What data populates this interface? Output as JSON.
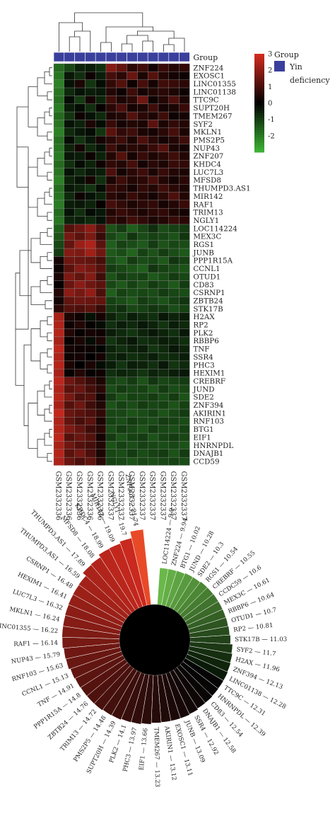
{
  "chart_data": [
    {
      "type": "heatmap",
      "title": "",
      "group_label": "Group",
      "legend_group_title": "Group",
      "legend_group_entry": "Yin deficiency",
      "legend_group_entry_lines": [
        "Yin",
        "deficiency"
      ],
      "group_color": "#3a3f9c",
      "colorscale": {
        "min": -3,
        "max": 3,
        "low": "#3cb034",
        "mid": "#000000",
        "high": "#d12a1f"
      },
      "colorbar_ticks": [
        3,
        2,
        1,
        0,
        -1,
        -2
      ],
      "columns": [
        "GSM2332336",
        "GSM2332336",
        "GSM2332336",
        "GSM2332336",
        "GSM2332336",
        "GSM2332337",
        "GSM2332337",
        "GSM2332337",
        "GSM2332337",
        "GSM2332337",
        "GSM2332337",
        "GSM2332337",
        "GSM2332337"
      ],
      "rows": [
        "ZNF224",
        "EXOSC1",
        "LINC01355",
        "LINC01138",
        "TTC9C",
        "SUPT20H",
        "TMEM267",
        "SYF2",
        "MKLN1",
        "PMS2P5",
        "NUP43",
        "ZNF207",
        "KHDC4",
        "LUC7L3",
        "MFSD8",
        "THUMPD3.AS1",
        "MIR142",
        "RAF1",
        "TRIM13",
        "NGLY1",
        "LOC114224",
        "MEX3C",
        "RGS1",
        "JUNB",
        "PPP1R15A",
        "CCNL1",
        "OTUD1",
        "CD83",
        "CSRNP1",
        "ZBTB24",
        "STK17B",
        "H2AX",
        "RP2",
        "PLK2",
        "RBBP6",
        "TNF",
        "SSR4",
        "PHC3",
        "HEXIM1",
        "CREBRF",
        "JUND",
        "SDE2",
        "ZNF394",
        "AKIRIN1",
        "RNF103",
        "BTG1",
        "EIF1",
        "HNRNPDL",
        "DNAJB1",
        "CCD59"
      ],
      "values": [
        [
          -1.8,
          -1.2,
          -0.6,
          -0.5,
          -0.8,
          1.9,
          1.4,
          0.6,
          0.9,
          0.3,
          0.8,
          0.5,
          0.7
        ],
        [
          -2.0,
          -0.4,
          -0.8,
          0.2,
          -0.5,
          1.0,
          0.6,
          1.5,
          0.4,
          1.2,
          0.5,
          0.3,
          0.2
        ],
        [
          -2.2,
          -0.3,
          0.4,
          -0.9,
          -0.2,
          0.7,
          1.2,
          0.2,
          1.0,
          0.3,
          0.9,
          0.8,
          0.6
        ],
        [
          -2.0,
          -0.7,
          -0.3,
          -0.5,
          -0.4,
          0.5,
          0.2,
          0.9,
          0.3,
          0.5,
          0.6,
          0.4,
          0.2
        ],
        [
          -1.9,
          -0.2,
          -1.0,
          0.3,
          -0.6,
          0.9,
          0.4,
          0.6,
          1.6,
          0.2,
          0.5,
          1.1,
          0.4
        ],
        [
          -2.1,
          -0.5,
          -0.2,
          -0.8,
          0.1,
          0.6,
          1.1,
          0.3,
          0.4,
          0.9,
          0.3,
          0.4,
          0.8
        ],
        [
          -1.8,
          -0.9,
          0.2,
          -0.3,
          -0.7,
          0.4,
          0.5,
          1.2,
          0.6,
          0.4,
          0.9,
          0.2,
          0.3
        ],
        [
          -2.0,
          -0.3,
          -0.6,
          0.4,
          -0.2,
          0.8,
          0.3,
          0.5,
          0.4,
          1.3,
          0.4,
          0.7,
          0.5
        ],
        [
          -2.2,
          -0.7,
          -0.4,
          -0.2,
          -0.9,
          1.3,
          0.7,
          0.9,
          0.4,
          0.3,
          0.6,
          1.0,
          0.4
        ],
        [
          -1.9,
          -0.2,
          -0.9,
          -0.4,
          0.3,
          0.6,
          0.9,
          0.4,
          1.1,
          0.6,
          0.3,
          0.5,
          0.9
        ],
        [
          -2.0,
          -0.6,
          0.3,
          -0.7,
          -0.3,
          0.9,
          0.4,
          0.6,
          0.5,
          0.8,
          1.2,
          0.4,
          0.3
        ],
        [
          -2.1,
          -0.4,
          -0.5,
          0.2,
          -0.6,
          0.5,
          1.2,
          0.3,
          0.8,
          0.4,
          0.6,
          0.9,
          0.5
        ],
        [
          -1.8,
          -0.8,
          -0.2,
          -0.6,
          0.2,
          0.7,
          0.5,
          1.0,
          0.3,
          0.6,
          0.4,
          0.8,
          0.7
        ],
        [
          -2.0,
          -0.3,
          -0.7,
          -0.4,
          -0.5,
          1.1,
          0.3,
          0.6,
          0.9,
          0.4,
          0.8,
          0.5,
          0.4
        ],
        [
          -2.2,
          -0.6,
          -0.3,
          0.3,
          -0.8,
          0.4,
          0.9,
          0.5,
          0.6,
          1.0,
          0.5,
          0.3,
          0.6
        ],
        [
          -1.9,
          -0.4,
          -0.6,
          -0.9,
          -0.2,
          0.8,
          0.6,
          0.3,
          0.7,
          0.5,
          0.9,
          0.6,
          0.4
        ],
        [
          -2.0,
          -0.7,
          0.2,
          -0.3,
          -0.6,
          0.6,
          0.4,
          0.8,
          0.5,
          0.3,
          0.6,
          1.1,
          0.5
        ],
        [
          -2.1,
          -0.5,
          -0.4,
          -0.6,
          0.1,
          1.0,
          0.7,
          0.4,
          0.6,
          0.7,
          0.3,
          0.5,
          0.8
        ],
        [
          -1.8,
          -0.3,
          -0.8,
          -0.2,
          -0.4,
          0.5,
          0.8,
          0.6,
          0.4,
          0.6,
          0.7,
          0.4,
          0.3
        ],
        [
          -2.0,
          -0.6,
          -0.5,
          -0.7,
          -0.3,
          0.7,
          0.5,
          0.9,
          0.7,
          0.4,
          0.5,
          0.8,
          0.6
        ],
        [
          -1.6,
          1.2,
          1.6,
          2.0,
          1.1,
          -1.4,
          -1.0,
          -1.6,
          -1.2,
          -0.8,
          -1.3,
          -1.1,
          -1.0
        ],
        [
          -1.4,
          1.7,
          1.3,
          1.8,
          0.8,
          -1.2,
          -1.5,
          -0.9,
          -1.3,
          -1.1,
          -1.2,
          -1.4,
          -0.9
        ],
        [
          -1.2,
          1.4,
          2.2,
          2.5,
          1.3,
          -1.6,
          -1.1,
          -1.3,
          -1.5,
          -1.0,
          -1.4,
          -1.2,
          -1.3
        ],
        [
          -1.0,
          1.9,
          1.8,
          2.3,
          1.6,
          -1.5,
          -1.3,
          -1.7,
          -1.1,
          -1.4,
          -1.0,
          -1.3,
          -1.5
        ],
        [
          0.3,
          1.6,
          1.5,
          1.4,
          1.0,
          -1.3,
          -1.6,
          -1.0,
          -1.3,
          -1.2,
          -1.5,
          -0.9,
          -1.1
        ],
        [
          0.2,
          1.3,
          1.9,
          1.7,
          1.2,
          -1.0,
          -1.2,
          -1.4,
          -1.6,
          -0.9,
          -1.1,
          -1.3,
          -1.4
        ],
        [
          0.4,
          1.8,
          1.4,
          1.9,
          0.9,
          -1.4,
          -1.0,
          -1.2,
          -1.1,
          -1.5,
          -1.3,
          -1.0,
          -1.2
        ],
        [
          0.1,
          1.5,
          2.0,
          1.6,
          1.3,
          -1.2,
          -1.5,
          -1.1,
          -1.4,
          -1.0,
          -1.2,
          -1.5,
          -1.0
        ],
        [
          0.5,
          2.0,
          1.7,
          2.1,
          1.1,
          -1.6,
          -1.1,
          -1.3,
          -1.2,
          -1.3,
          -1.0,
          -1.2,
          -1.3
        ],
        [
          0.3,
          1.4,
          1.6,
          1.5,
          1.4,
          -1.1,
          -1.3,
          -1.5,
          -1.0,
          -1.2,
          -1.4,
          -1.1,
          -0.9
        ],
        [
          0.6,
          1.2,
          1.1,
          1.3,
          0.8,
          -1.0,
          -0.8,
          -1.2,
          -1.1,
          -0.9,
          -1.0,
          -1.3,
          -1.1
        ],
        [
          2.4,
          0.4,
          0.2,
          -0.3,
          0.3,
          -0.6,
          -0.9,
          -0.5,
          -0.7,
          -0.8,
          -0.4,
          -0.6,
          -0.5
        ],
        [
          2.5,
          0.2,
          0.5,
          0.1,
          -0.2,
          -0.8,
          -0.5,
          -0.7,
          -0.4,
          -0.6,
          -0.9,
          -0.5,
          -0.7
        ],
        [
          2.6,
          0.5,
          0.1,
          0.3,
          0.2,
          -0.5,
          -0.7,
          -0.9,
          -0.6,
          -0.4,
          -0.6,
          -0.8,
          -0.4
        ],
        [
          2.4,
          0.1,
          0.4,
          -0.2,
          0.4,
          -0.9,
          -0.6,
          -0.4,
          -0.8,
          -0.7,
          -0.5,
          -0.6,
          -0.8
        ],
        [
          2.7,
          0.3,
          0.2,
          0.2,
          -0.1,
          -0.6,
          -0.8,
          -0.6,
          -0.5,
          -0.9,
          -0.7,
          -0.4,
          -0.6
        ],
        [
          2.5,
          0.2,
          0.3,
          0.0,
          0.3,
          -0.7,
          -0.5,
          -0.8,
          -0.7,
          -0.5,
          -0.8,
          -0.7,
          -0.5
        ],
        [
          2.6,
          0.4,
          0.0,
          0.4,
          -0.2,
          -0.5,
          -0.9,
          -0.5,
          -0.6,
          -0.8,
          -0.4,
          -0.9,
          -0.7
        ],
        [
          2.4,
          0.1,
          0.5,
          0.1,
          0.2,
          -0.8,
          -0.6,
          -0.7,
          -0.9,
          -0.6,
          -0.7,
          -0.5,
          -0.4
        ],
        [
          2.7,
          1.6,
          1.2,
          0.8,
          0.4,
          -1.1,
          -1.3,
          -1.0,
          -1.4,
          -0.9,
          -1.2,
          -1.1,
          -1.0
        ],
        [
          2.5,
          1.3,
          1.5,
          1.0,
          0.6,
          -1.3,
          -1.0,
          -1.2,
          -1.1,
          -1.4,
          -1.0,
          -1.3,
          -1.2
        ],
        [
          2.6,
          1.7,
          1.1,
          1.2,
          0.3,
          -1.0,
          -1.4,
          -1.1,
          -1.2,
          -1.0,
          -1.3,
          -1.0,
          -1.4
        ],
        [
          2.4,
          1.2,
          1.6,
          0.9,
          0.5,
          -1.4,
          -1.1,
          -1.3,
          -1.0,
          -1.2,
          -1.1,
          -1.4,
          -1.1
        ],
        [
          2.8,
          1.5,
          1.3,
          1.1,
          0.7,
          -1.2,
          -1.2,
          -1.4,
          -1.3,
          -1.1,
          -1.4,
          -1.2,
          -1.0
        ],
        [
          2.5,
          1.4,
          1.0,
          1.3,
          0.4,
          -1.1,
          -1.3,
          -1.0,
          -1.2,
          -1.3,
          -1.0,
          -1.1,
          -1.3
        ],
        [
          2.6,
          1.8,
          1.4,
          0.9,
          0.6,
          -1.3,
          -1.0,
          -1.2,
          -1.4,
          -1.0,
          -1.2,
          -1.3,
          -1.1
        ],
        [
          2.7,
          1.2,
          1.5,
          1.2,
          0.3,
          -1.0,
          -1.4,
          -1.1,
          -1.0,
          -1.4,
          -1.1,
          -1.0,
          -1.2
        ],
        [
          2.4,
          1.6,
          1.2,
          1.0,
          0.5,
          -1.4,
          -1.1,
          -1.3,
          -1.1,
          -1.2,
          -1.3,
          -1.2,
          -1.4
        ],
        [
          2.6,
          1.3,
          1.7,
          1.1,
          0.4,
          -1.2,
          -1.3,
          -1.0,
          -1.3,
          -1.1,
          -1.0,
          -1.4,
          -1.0
        ],
        [
          2.5,
          1.5,
          1.1,
          1.4,
          0.6,
          -1.1,
          -1.2,
          -1.4,
          -1.2,
          -1.3,
          -1.2,
          -1.1,
          -1.3
        ]
      ]
    },
    {
      "type": "radial_bar",
      "title": "",
      "center_color": "#000000",
      "colorscale": {
        "low": "#000000",
        "high": "#d12a1f"
      },
      "highlight_color": "#e84a28",
      "green_color": "#6ab84a",
      "items": [
        {
          "label": "LOC114224",
          "value": 9.9
        },
        {
          "label": "ZNF224",
          "value": 9.94
        },
        {
          "label": "BTG1",
          "value": 10.02
        },
        {
          "label": "JUND",
          "value": 10.28
        },
        {
          "label": "SDE2",
          "value": 10.3
        },
        {
          "label": "RGS1",
          "value": 10.54
        },
        {
          "label": "CREBRF",
          "value": 10.55
        },
        {
          "label": "CCDC59",
          "value": 10.6
        },
        {
          "label": "MEX3C",
          "value": 10.61
        },
        {
          "label": "RBBP6",
          "value": 10.64
        },
        {
          "label": "OTUD1",
          "value": 10.7
        },
        {
          "label": "RP2",
          "value": 10.81
        },
        {
          "label": "STK17B",
          "value": 11.03
        },
        {
          "label": "SYF2",
          "value": 11.7
        },
        {
          "label": "H2AX",
          "value": 11.96
        },
        {
          "label": "ZNF394",
          "value": 12.13
        },
        {
          "label": "LINC01138",
          "value": 12.28
        },
        {
          "label": "TTC9C",
          "value": 12.31
        },
        {
          "label": "HNRNPDL",
          "value": 12.39
        },
        {
          "label": "CD83",
          "value": 12.54
        },
        {
          "label": "DNAJB1",
          "value": 12.58
        },
        {
          "label": "SSR4",
          "value": 12.92
        },
        {
          "label": "JUNB",
          "value": 13.09
        },
        {
          "label": "EXOSC1",
          "value": 13.11
        },
        {
          "label": "AKIRIN1",
          "value": 13.12
        },
        {
          "label": "TMEM267",
          "value": 13.23
        },
        {
          "label": "EIF1",
          "value": 13.66
        },
        {
          "label": "PHC3",
          "value": 13.97
        },
        {
          "label": "PLK2",
          "value": 14.1
        },
        {
          "label": "SUPT20H",
          "value": 14.39
        },
        {
          "label": "PMS2P5",
          "value": 14.48
        },
        {
          "label": "TRIM13",
          "value": 14.72
        },
        {
          "label": "ZBTB24",
          "value": 14.76
        },
        {
          "label": "PPP1R15A",
          "value": 14.8
        },
        {
          "label": "TNF",
          "value": 14.91
        },
        {
          "label": "CCNL1",
          "value": 15.13
        },
        {
          "label": "RNF103",
          "value": 15.63
        },
        {
          "label": "NUP43",
          "value": 15.79
        },
        {
          "label": "RAF1",
          "value": 16.14
        },
        {
          "label": "LINC01355",
          "value": 16.22
        },
        {
          "label": "MKLN1",
          "value": 16.24
        },
        {
          "label": "LUC7L3",
          "value": 16.32
        },
        {
          "label": "HEXIM1",
          "value": 16.41
        },
        {
          "label": "CSRNP1",
          "value": 16.48
        },
        {
          "label": "THUMPD3.AS1",
          "value": 16.59
        },
        {
          "label": "MFSD8",
          "value": 17.89
        },
        {
          "label": "KHDC4",
          "value": 18.08
        },
        {
          "label": "MIR142",
          "value": 18.99
        },
        {
          "label": "NGLY1",
          "value": 19.09
        },
        {
          "label": "ZNF207",
          "value": 19.7
        },
        {
          "label": "ZNF207_top",
          "value": 21.74
        }
      ],
      "label_separator": " — ",
      "label_overrides": {
        "ZNF207": "NGLY1",
        "NGLY1": "MIR142",
        "MIR142": "KHDC4",
        "KHDC4": "MFSD8",
        "MFSD8": "THUMPD3.AS1",
        "ZNF207_top": "ZNF207"
      }
    }
  ]
}
